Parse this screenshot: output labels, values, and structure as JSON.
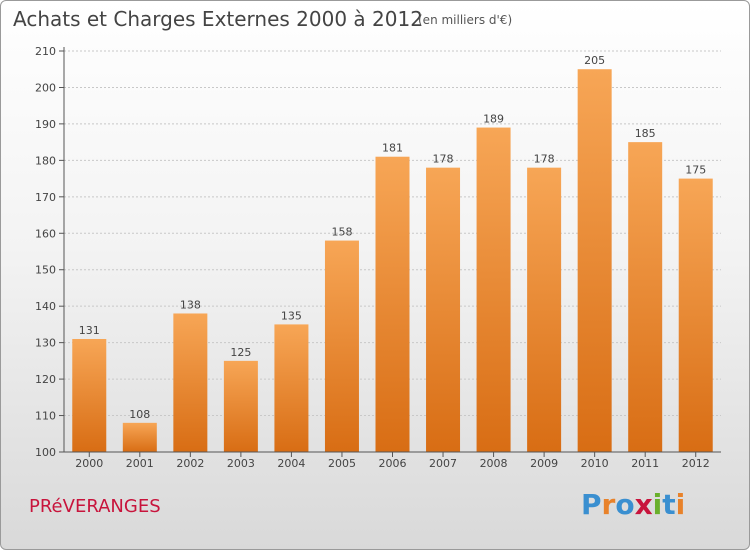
{
  "header": {
    "title": "Achats et Charges Externes 2000 à 2012",
    "subtitle": "(en milliers d'€)"
  },
  "footer": {
    "commune": "PRéVERANGES",
    "brand": "Proxiti",
    "brand_letters": [
      {
        "ch": "P",
        "color": "#3a8fd0"
      },
      {
        "ch": "r",
        "color": "#e8822a"
      },
      {
        "ch": "o",
        "color": "#3a8fd0"
      },
      {
        "ch": "x",
        "color": "#c8143c"
      },
      {
        "ch": "i",
        "color": "#6ab02c"
      },
      {
        "ch": "t",
        "color": "#3a8fd0"
      },
      {
        "ch": "i",
        "color": "#e8822a"
      }
    ]
  },
  "colors": {
    "bar_light": "#f7a656",
    "bar_dark": "#d86d14",
    "axis": "#555555",
    "grid": "#c8c8c8",
    "commune": "#c8143c"
  },
  "chart_data": {
    "type": "bar",
    "categories": [
      "2000",
      "2001",
      "2002",
      "2003",
      "2004",
      "2005",
      "2006",
      "2007",
      "2008",
      "2009",
      "2010",
      "2011",
      "2012"
    ],
    "values": [
      131,
      108,
      138,
      125,
      135,
      158,
      181,
      178,
      189,
      178,
      205,
      185,
      175
    ],
    "ylim": [
      100,
      210
    ],
    "yticks": [
      100,
      110,
      120,
      130,
      140,
      150,
      160,
      170,
      180,
      190,
      200,
      210
    ],
    "grid": true,
    "data_labels": true
  }
}
